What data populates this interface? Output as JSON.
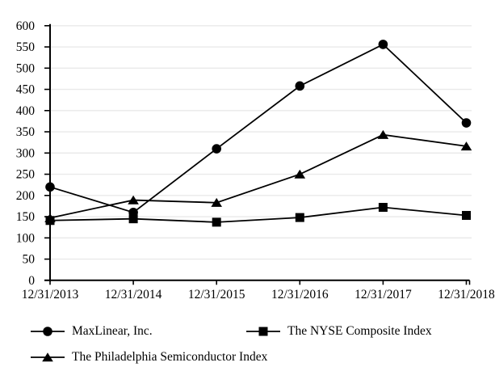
{
  "chart_data": {
    "type": "line",
    "title": "",
    "xlabel": "",
    "ylabel": "",
    "categories": [
      "12/31/2013",
      "12/31/2014",
      "12/31/2015",
      "12/31/2016",
      "12/31/2017",
      "12/31/2018"
    ],
    "series": [
      {
        "name": "MaxLinear, Inc.",
        "marker": "circle",
        "values": [
          220,
          160,
          310,
          458,
          556,
          371
        ]
      },
      {
        "name": "The NYSE Composite Index",
        "marker": "square",
        "values": [
          141,
          145,
          137,
          148,
          172,
          153
        ]
      },
      {
        "name": "The Philadelphia Semiconductor Index",
        "marker": "triangle",
        "values": [
          147,
          189,
          183,
          250,
          343,
          316
        ]
      }
    ],
    "y_axis": {
      "min": 0,
      "max": 600,
      "step": 50,
      "tick_labels": [
        "0",
        "50",
        "100",
        "150",
        "200",
        "250",
        "300",
        "350",
        "400",
        "450",
        "500",
        "550",
        "600"
      ]
    },
    "grid": true,
    "legend_position": "bottom",
    "colors": {
      "line": "#000000",
      "marker": "#000000",
      "gridline": "#e9e9e9",
      "axis": "#000000",
      "text": "#000000",
      "background": "#ffffff"
    }
  }
}
